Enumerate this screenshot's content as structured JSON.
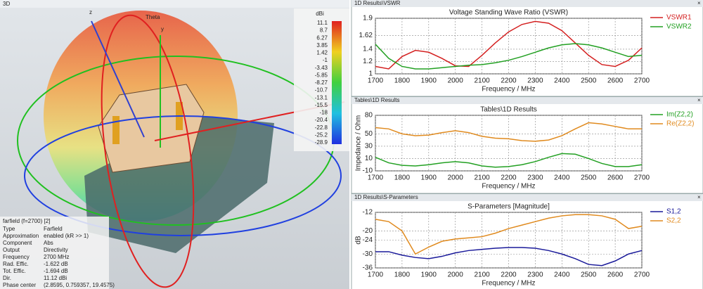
{
  "window_3d": {
    "window_title": "3D",
    "axis_labels": [
      "z",
      "y",
      "Theta"
    ],
    "colorbar_unit": "dBi",
    "colorbar_labels": [
      "11.1",
      "8.7",
      "6.27",
      "3.85",
      "1.42",
      "-1",
      "-3.43",
      "-5.85",
      "-8.27",
      "-10.7",
      "-13.1",
      "-15.5",
      "-18",
      "-20.4",
      "-22.8",
      "-25.2",
      "-28.9"
    ],
    "info_title": "farfield (f=2700) [2]",
    "info_rows": [
      [
        "Type",
        "Farfield"
      ],
      [
        "Approximation",
        "enabled (kR >> 1)"
      ],
      [
        "Component",
        "Abs"
      ],
      [
        "Output",
        "Directivity"
      ],
      [
        "Frequency",
        "2700 MHz"
      ],
      [
        "Rad. Effic.",
        "-1.622 dB"
      ],
      [
        "Tot. Effic.",
        "-1.694 dB"
      ],
      [
        "Dir.",
        "11.12 dBi"
      ],
      [
        "Phase center",
        "(2.8595, 0.759357, 19.4575)"
      ]
    ]
  },
  "chart_data": [
    {
      "window_title": "1D Results\\VSWR",
      "type": "line",
      "title": "Voltage Standing Wave Ratio (VSWR)",
      "x_label": "Frequency / MHz",
      "x": [
        1700,
        1750,
        1800,
        1850,
        1900,
        1950,
        2000,
        2050,
        2100,
        2150,
        2200,
        2250,
        2300,
        2350,
        2400,
        2450,
        2500,
        2550,
        2600,
        2650,
        2700
      ],
      "xlim": [
        1700,
        2700
      ],
      "xticks": [
        1700,
        1800,
        1900,
        2000,
        2100,
        2200,
        2300,
        2400,
        2500,
        2600,
        2700
      ],
      "ylim": [
        1,
        1.9
      ],
      "yticks": [
        1,
        1.2,
        1.4,
        1.62,
        1.9
      ],
      "grid": true,
      "series": [
        {
          "name": "VSWR1",
          "color": "#d42020",
          "values": [
            1.12,
            1.08,
            1.28,
            1.38,
            1.35,
            1.25,
            1.13,
            1.12,
            1.3,
            1.5,
            1.68,
            1.8,
            1.85,
            1.82,
            1.7,
            1.5,
            1.3,
            1.15,
            1.12,
            1.22,
            1.42
          ]
        },
        {
          "name": "VSWR2",
          "color": "#22a022",
          "values": [
            1.48,
            1.25,
            1.12,
            1.08,
            1.08,
            1.1,
            1.12,
            1.14,
            1.15,
            1.18,
            1.22,
            1.28,
            1.35,
            1.42,
            1.47,
            1.49,
            1.47,
            1.42,
            1.35,
            1.28,
            1.3
          ]
        }
      ]
    },
    {
      "window_title": "Tables\\1D Results",
      "type": "line",
      "title": "Tables\\1D Results",
      "x_label": "Frequency / MHz",
      "y_label": "Impedance / Ohm",
      "x": [
        1700,
        1750,
        1800,
        1850,
        1900,
        1950,
        2000,
        2050,
        2100,
        2150,
        2200,
        2250,
        2300,
        2350,
        2400,
        2450,
        2500,
        2550,
        2600,
        2650,
        2700
      ],
      "xlim": [
        1700,
        2700
      ],
      "xticks": [
        1700,
        1800,
        1900,
        2000,
        2100,
        2200,
        2300,
        2400,
        2500,
        2600,
        2700
      ],
      "ylim": [
        -10,
        80
      ],
      "yticks": [
        -10,
        10,
        30,
        50,
        80
      ],
      "grid": true,
      "series": [
        {
          "name": "Im(Z2,2)",
          "color": "#22a022",
          "values": [
            12,
            3,
            -1,
            -2,
            0,
            3,
            5,
            3,
            -2,
            -4,
            -3,
            0,
            5,
            12,
            18,
            17,
            10,
            2,
            -3,
            -3,
            0
          ]
        },
        {
          "name": "Re(Z2,2)",
          "color": "#e08a1e",
          "values": [
            60,
            58,
            50,
            47,
            48,
            52,
            55,
            52,
            46,
            43,
            42,
            39,
            38,
            40,
            47,
            58,
            68,
            66,
            62,
            58,
            58
          ]
        }
      ]
    },
    {
      "window_title": "1D Results\\S-Parameters",
      "type": "line",
      "title": "S-Parameters [Magnitude]",
      "x_label": "Frequency / MHz",
      "y_label": "dB",
      "x": [
        1700,
        1750,
        1800,
        1850,
        1900,
        1950,
        2000,
        2050,
        2100,
        2150,
        2200,
        2250,
        2300,
        2350,
        2400,
        2450,
        2500,
        2550,
        2600,
        2650,
        2700
      ],
      "xlim": [
        1700,
        2700
      ],
      "xticks": [
        1700,
        1800,
        1900,
        2000,
        2100,
        2200,
        2300,
        2400,
        2500,
        2600,
        2700
      ],
      "ylim": [
        -36,
        -12
      ],
      "yticks": [
        -36,
        -30,
        -24,
        -20,
        -12
      ],
      "grid": true,
      "series": [
        {
          "name": "S1,2",
          "color": "#1a1a9a",
          "values": [
            -29,
            -29,
            -30.5,
            -31.5,
            -32,
            -31,
            -29.5,
            -28.5,
            -28,
            -27.5,
            -27.2,
            -27.2,
            -27.5,
            -28.5,
            -30,
            -32,
            -34.5,
            -35,
            -33,
            -30,
            -28.5
          ]
        },
        {
          "name": "S2,2",
          "color": "#e08a1e",
          "values": [
            -15,
            -16,
            -20,
            -30,
            -27,
            -24.5,
            -23.5,
            -23,
            -22.5,
            -21,
            -19,
            -17.5,
            -16,
            -14.5,
            -13.5,
            -13,
            -13,
            -13.5,
            -15,
            -19,
            -18
          ]
        }
      ]
    }
  ]
}
